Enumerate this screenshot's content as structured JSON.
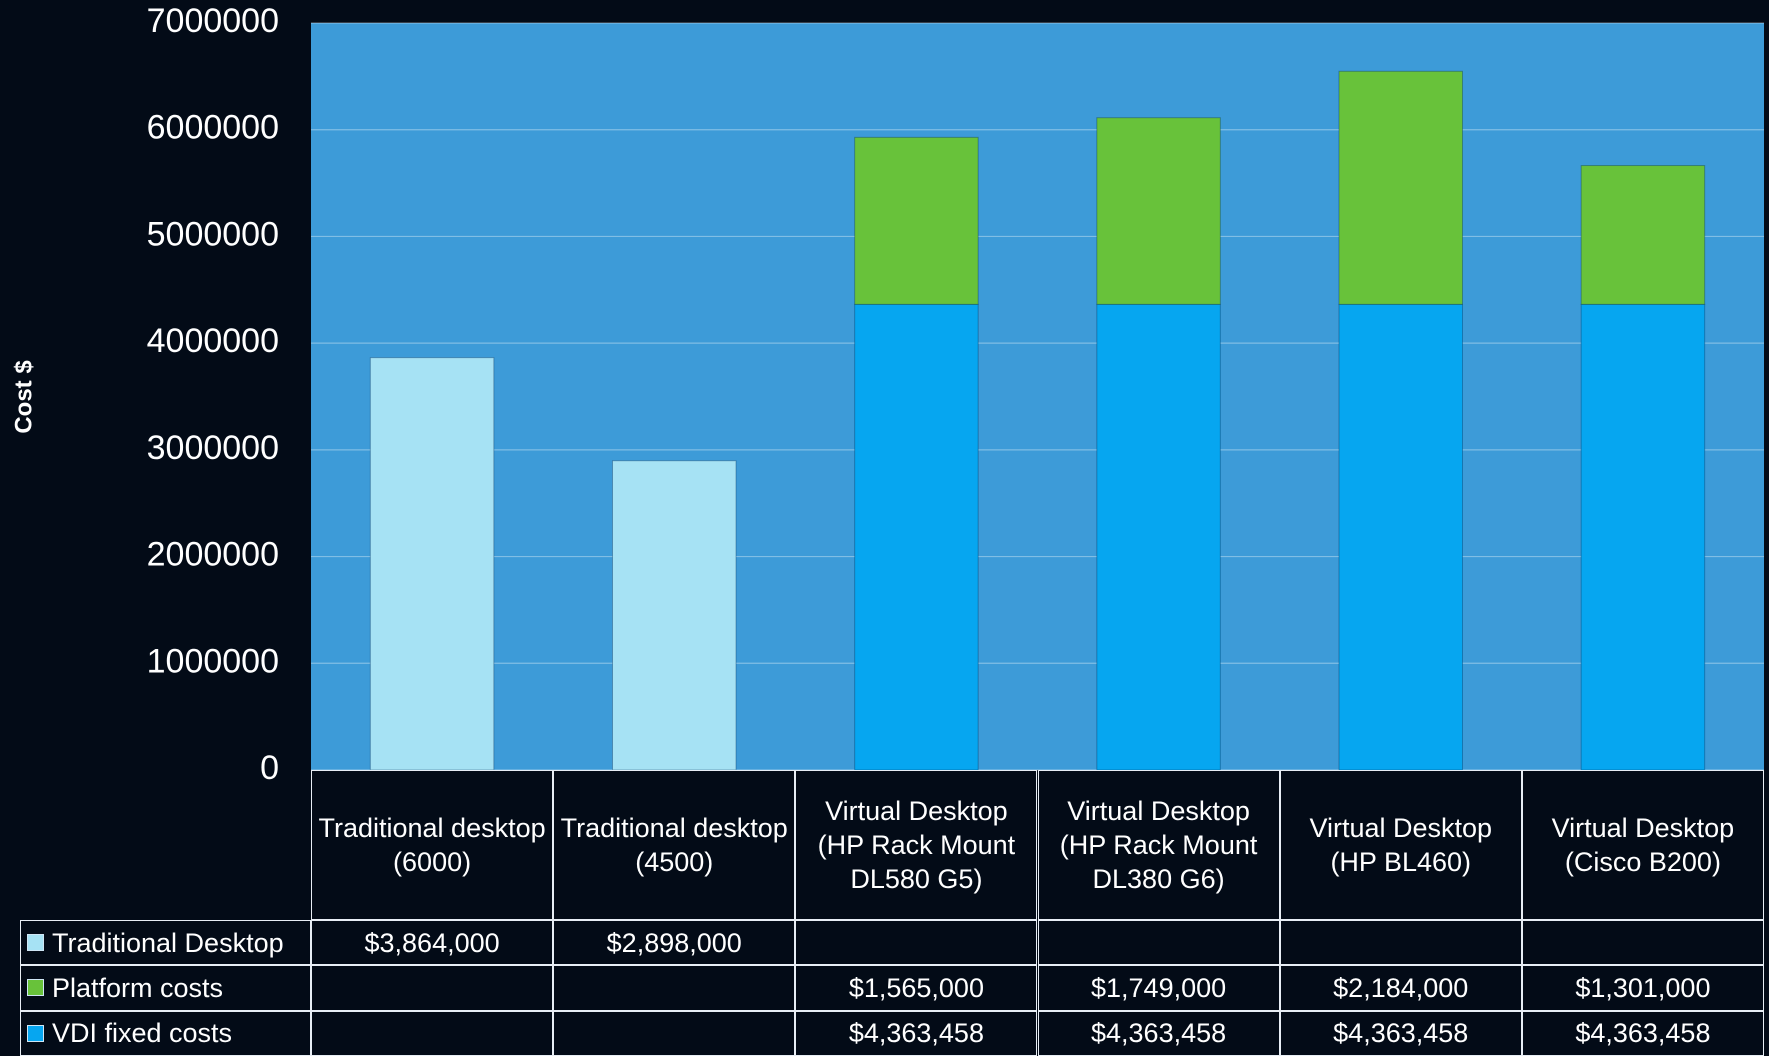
{
  "chart_data": {
    "type": "stacked_bar",
    "y_label": "Cost $",
    "categories": [
      "Traditional desktop (6000)",
      "Traditional desktop (4500)",
      "Virtual Desktop (HP Rack Mount DL580 G5)",
      "Virtual Desktop (HP Rack Mount DL380 G6)",
      "Virtual Desktop (HP BL460)",
      "Virtual Desktop (Cisco B200)"
    ],
    "series": [
      {
        "name": "Traditional Desktop",
        "color": "#a6e2f4",
        "values": [
          3864000,
          2898000,
          null,
          null,
          null,
          null
        ],
        "value_labels": [
          "$3,864,000",
          "$2,898,000",
          null,
          null,
          null,
          null
        ]
      },
      {
        "name": "Platform costs",
        "color": "#68c23a",
        "values": [
          null,
          null,
          1565000,
          1749000,
          2184000,
          1301000
        ],
        "value_labels": [
          null,
          null,
          "$1,565,000",
          "$1,749,000",
          "$2,184,000",
          "$1,301,000"
        ]
      },
      {
        "name": "VDI fixed costs",
        "color": "#06a6f0",
        "values": [
          null,
          null,
          4363458,
          4363458,
          4363458,
          4363458
        ],
        "value_labels": [
          null,
          null,
          "$4,363,458",
          "$4,363,458",
          "$4,363,458",
          "$4,363,458"
        ]
      }
    ],
    "ylim": [
      0,
      7000000
    ],
    "yticks": [
      0,
      1000000,
      2000000,
      3000000,
      4000000,
      5000000,
      6000000,
      7000000
    ],
    "grid": true,
    "plot_background": "#3d9bd8"
  }
}
